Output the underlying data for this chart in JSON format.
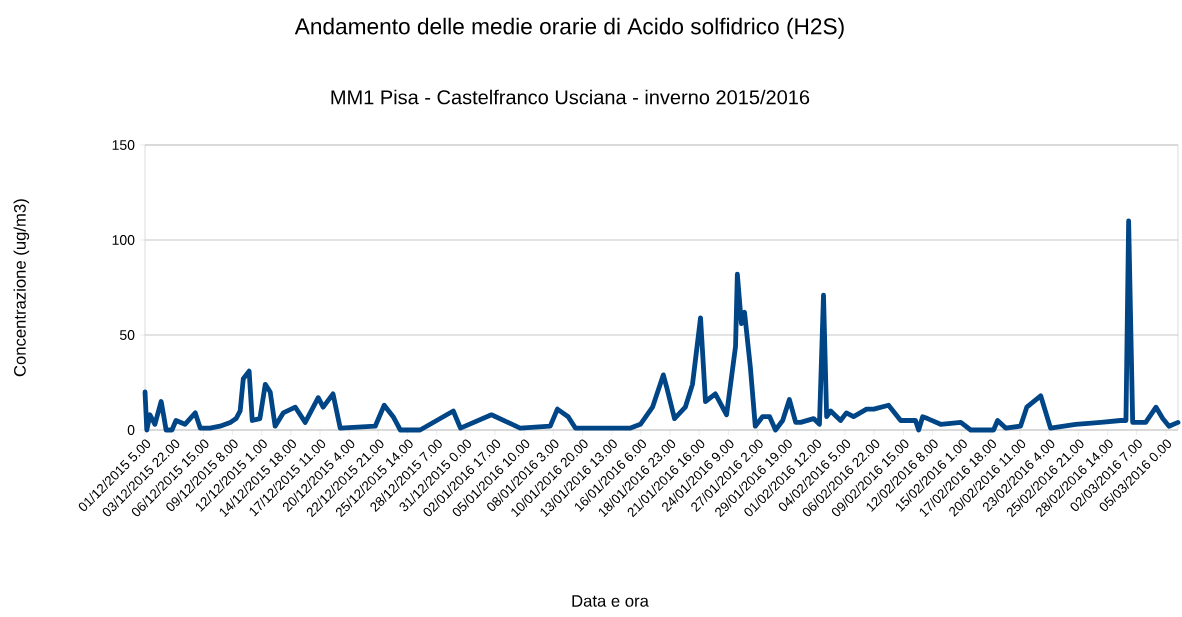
{
  "chart_data": {
    "type": "line",
    "title": "Andamento delle medie orarie di Acido solfidrico (H2S)",
    "subtitle": "MM1 Pisa - Castelfranco Usciana - inverno 2015/2016",
    "xlabel": "Data e ora",
    "ylabel": "Concentrazione (ug/m3)",
    "x": [
      "2015-12-01T05:00",
      "2015-12-01T09:00",
      "2015-12-01T16:00",
      "2015-12-02T03:00",
      "2015-12-02T17:00",
      "2015-12-02T23:00",
      "2015-12-03T04:00",
      "2015-12-03T17:00",
      "2015-12-04T02:00",
      "2015-12-04T22:00",
      "2015-12-05T21:00",
      "2015-12-06T08:00",
      "2015-12-07T06:00",
      "2015-12-08T04:00",
      "2015-12-09T03:00",
      "2015-12-09T16:00",
      "2015-12-10T01:00",
      "2015-12-10T08:00",
      "2015-12-10T21:00",
      "2015-12-11T04:00",
      "2015-12-11T21:00",
      "2015-12-12T09:00",
      "2015-12-12T20:00",
      "2015-12-13T07:00",
      "2015-12-14T01:00",
      "2015-12-15T04:00",
      "2015-12-16T02:00",
      "2015-12-17T07:00",
      "2015-12-17T18:00",
      "2015-12-18T16:00",
      "2015-12-19T08:00",
      "2015-12-22T14:00",
      "2015-12-23T10:00",
      "2015-12-24T06:00",
      "2015-12-24T22:00",
      "2015-12-26T18:00",
      "2015-12-29T20:00",
      "2015-12-30T12:00",
      "2016-01-02T09:00",
      "2016-01-05T01:00",
      "2016-01-07T20:00",
      "2016-01-08T12:00",
      "2016-01-09T12:00",
      "2016-01-10T04:00",
      "2016-01-13T10:00",
      "2016-01-15T07:00",
      "2016-01-16T05:00",
      "2016-01-17T08:00",
      "2016-01-18T08:00",
      "2016-01-18T15:00",
      "2016-01-19T09:00",
      "2016-01-20T09:00",
      "2016-01-21T01:00",
      "2016-01-21T19:00",
      "2016-01-22T06:00",
      "2016-01-23T04:00",
      "2016-01-24T05:00",
      "2016-01-25T01:00",
      "2016-01-25T05:00",
      "2016-01-25T14:00",
      "2016-01-25T21:00",
      "2016-01-26T10:00",
      "2016-01-26T21:00",
      "2016-01-27T13:00",
      "2016-01-28T05:00",
      "2016-01-28T18:00",
      "2016-01-29T10:00",
      "2016-01-30T01:00",
      "2016-01-30T15:00",
      "2016-01-31T02:00",
      "2016-02-01T07:00",
      "2016-02-01T20:00",
      "2016-02-02T05:00",
      "2016-02-02T12:00",
      "2016-02-02T21:00",
      "2016-02-03T19:00",
      "2016-02-04T08:00",
      "2016-02-05T00:00",
      "2016-02-06T05:00",
      "2016-02-06T21:00",
      "2016-02-08T06:00",
      "2016-02-09T09:00",
      "2016-02-10T18:00",
      "2016-02-11T01:00",
      "2016-02-11T10:00",
      "2016-02-11T21:00",
      "2016-02-13T02:00",
      "2016-02-14T23:00",
      "2016-02-15T21:00",
      "2016-02-18T00:00",
      "2016-02-18T09:00",
      "2016-02-19T03:00",
      "2016-02-20T12:00",
      "2016-02-21T02:00",
      "2016-02-22T09:00",
      "2016-02-23T07:00",
      "2016-02-25T15:00",
      "2016-02-27T23:00",
      "2016-02-29T19:00",
      "2016-03-01T07:00",
      "2016-03-01T13:00",
      "2016-03-01T22:00",
      "2016-03-03T03:00",
      "2016-03-04T02:00",
      "2016-03-04T17:00",
      "2016-03-05T07:00",
      "2016-03-06T03:00"
    ],
    "series": [
      {
        "color": "#004586",
        "values": [
          20,
          0,
          8,
          3,
          15,
          7,
          0,
          0,
          5,
          3,
          9,
          1,
          1,
          2,
          4,
          6,
          10,
          27,
          31,
          5,
          6,
          24,
          20,
          2,
          9,
          12,
          4,
          17,
          12,
          19,
          1,
          2,
          13,
          7,
          0,
          0,
          10,
          1,
          8,
          1,
          2,
          11,
          7,
          1,
          1,
          1,
          3,
          12,
          29,
          23,
          6,
          12,
          24,
          59,
          15,
          19,
          8,
          44,
          82,
          56,
          62,
          33,
          2,
          7,
          7,
          0,
          5,
          16,
          4,
          4,
          6,
          3,
          71,
          7,
          10,
          5,
          9,
          7,
          11,
          11,
          13,
          5,
          5,
          0,
          7,
          6,
          3,
          4,
          0,
          0,
          5,
          1,
          2,
          12,
          18,
          1,
          3,
          4,
          5,
          5,
          110,
          4,
          4,
          12,
          6,
          2,
          4
        ]
      }
    ],
    "xlim": [
      "2015-12-01T05:00",
      "2016-03-06T03:00"
    ],
    "xticks": [
      {
        "value": "2015-12-01T05:00",
        "label": "01/12/2015 5.00"
      },
      {
        "value": "2015-12-03T22:00",
        "label": "03/12/2015 22.00"
      },
      {
        "value": "2015-12-06T15:00",
        "label": "06/12/2015 15.00"
      },
      {
        "value": "2015-12-09T08:00",
        "label": "09/12/2015 8.00"
      },
      {
        "value": "2015-12-12T01:00",
        "label": "12/12/2015 1.00"
      },
      {
        "value": "2015-12-14T18:00",
        "label": "14/12/2015 18.00"
      },
      {
        "value": "2015-12-17T11:00",
        "label": "17/12/2015 11.00"
      },
      {
        "value": "2015-12-20T04:00",
        "label": "20/12/2015 4.00"
      },
      {
        "value": "2015-12-22T21:00",
        "label": "22/12/2015 21.00"
      },
      {
        "value": "2015-12-25T14:00",
        "label": "25/12/2015 14.00"
      },
      {
        "value": "2015-12-28T07:00",
        "label": "28/12/2015 7.00"
      },
      {
        "value": "2015-12-31T00:00",
        "label": "31/12/2015 0.00"
      },
      {
        "value": "2016-01-02T17:00",
        "label": "02/01/2016 17.00"
      },
      {
        "value": "2016-01-05T10:00",
        "label": "05/01/2016 10.00"
      },
      {
        "value": "2016-01-08T03:00",
        "label": "08/01/2016 3.00"
      },
      {
        "value": "2016-01-10T20:00",
        "label": "10/01/2016 20.00"
      },
      {
        "value": "2016-01-13T13:00",
        "label": "13/01/2016 13.00"
      },
      {
        "value": "2016-01-16T06:00",
        "label": "16/01/2016 6.00"
      },
      {
        "value": "2016-01-18T23:00",
        "label": "18/01/2016 23.00"
      },
      {
        "value": "2016-01-21T16:00",
        "label": "21/01/2016 16.00"
      },
      {
        "value": "2016-01-24T09:00",
        "label": "24/01/2016 9.00"
      },
      {
        "value": "2016-01-27T02:00",
        "label": "27/01/2016 2.00"
      },
      {
        "value": "2016-01-29T19:00",
        "label": "29/01/2016 19.00"
      },
      {
        "value": "2016-02-01T12:00",
        "label": "01/02/2016 12.00"
      },
      {
        "value": "2016-02-04T05:00",
        "label": "04/02/2016 5.00"
      },
      {
        "value": "2016-02-06T22:00",
        "label": "06/02/2016 22.00"
      },
      {
        "value": "2016-02-09T15:00",
        "label": "09/02/2016 15.00"
      },
      {
        "value": "2016-02-12T08:00",
        "label": "12/02/2016 8.00"
      },
      {
        "value": "2016-02-15T01:00",
        "label": "15/02/2016 1.00"
      },
      {
        "value": "2016-02-17T18:00",
        "label": "17/02/2016 18.00"
      },
      {
        "value": "2016-02-20T11:00",
        "label": "20/02/2016 11.00"
      },
      {
        "value": "2016-02-23T04:00",
        "label": "23/02/2016 4.00"
      },
      {
        "value": "2016-02-25T21:00",
        "label": "25/02/2016 21.00"
      },
      {
        "value": "2016-02-28T14:00",
        "label": "28/02/2016 14.00"
      },
      {
        "value": "2016-03-02T07:00",
        "label": "02/03/2016 7.00"
      },
      {
        "value": "2016-03-05T00:00",
        "label": "05/03/2016 0.00"
      }
    ],
    "ylim": [
      0,
      150
    ],
    "yticks": [
      0,
      50,
      100,
      150
    ],
    "grid": "y"
  }
}
